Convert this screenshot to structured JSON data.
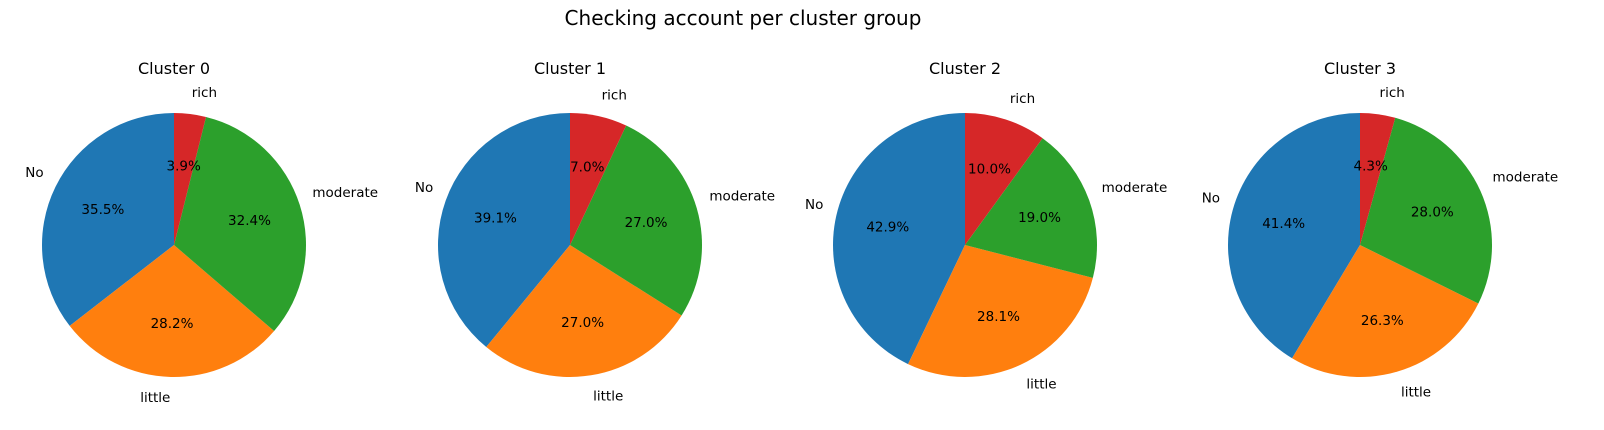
{
  "figure": {
    "title": "Checking account per cluster group"
  },
  "chart_data": [
    {
      "type": "pie",
      "title": "Cluster 0",
      "categories": [
        "No",
        "little",
        "moderate",
        "rich"
      ],
      "values": [
        35.5,
        28.2,
        32.4,
        3.9
      ],
      "value_labels": [
        "35.5%",
        "28.2%",
        "32.4%",
        "3.9%"
      ],
      "colors": [
        "#1f77b4",
        "#ff7f0e",
        "#2ca02c",
        "#d62728"
      ],
      "start_angle_deg": 90,
      "direction": "counterclockwise"
    },
    {
      "type": "pie",
      "title": "Cluster 1",
      "categories": [
        "No",
        "little",
        "moderate",
        "rich"
      ],
      "values": [
        39.1,
        27.0,
        27.0,
        7.0
      ],
      "value_labels": [
        "39.1%",
        "27.0%",
        "27.0%",
        "7.0%"
      ],
      "colors": [
        "#1f77b4",
        "#ff7f0e",
        "#2ca02c",
        "#d62728"
      ],
      "start_angle_deg": 90,
      "direction": "counterclockwise"
    },
    {
      "type": "pie",
      "title": "Cluster 2",
      "categories": [
        "No",
        "little",
        "moderate",
        "rich"
      ],
      "values": [
        42.9,
        28.1,
        19.0,
        10.0
      ],
      "value_labels": [
        "42.9%",
        "28.1%",
        "19.0%",
        "10.0%"
      ],
      "colors": [
        "#1f77b4",
        "#ff7f0e",
        "#2ca02c",
        "#d62728"
      ],
      "start_angle_deg": 90,
      "direction": "counterclockwise"
    },
    {
      "type": "pie",
      "title": "Cluster 3",
      "categories": [
        "No",
        "little",
        "moderate",
        "rich"
      ],
      "values": [
        41.4,
        26.3,
        28.0,
        4.3
      ],
      "value_labels": [
        "41.4%",
        "26.3%",
        "28.0%",
        "4.3%"
      ],
      "colors": [
        "#1f77b4",
        "#ff7f0e",
        "#2ca02c",
        "#d62728"
      ],
      "start_angle_deg": 90,
      "direction": "counterclockwise"
    }
  ]
}
